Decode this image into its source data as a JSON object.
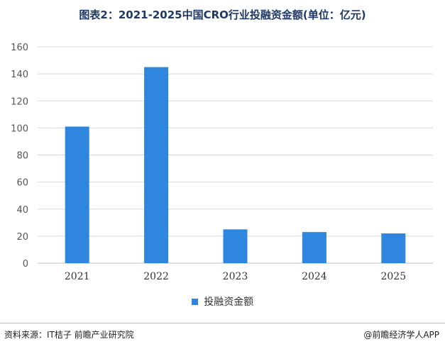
{
  "title": "图表2：2021-2025中国CRO行业投融资金额(单位：亿元)",
  "source": "资料来源：IT桔子 前瞻产业研究院",
  "brand": "@前瞻经济学人APP",
  "chart_data": {
    "type": "bar",
    "categories": [
      "2021",
      "2022",
      "2023",
      "2024",
      "2025"
    ],
    "series": [
      {
        "name": "投融资金额",
        "values": [
          101,
          145,
          25,
          23,
          22
        ],
        "color": "#2e86de"
      }
    ],
    "ylim": [
      0,
      160
    ],
    "yticks": [
      0,
      20,
      40,
      60,
      80,
      100,
      120,
      140,
      160
    ],
    "grid": true,
    "legend": "bottom"
  }
}
